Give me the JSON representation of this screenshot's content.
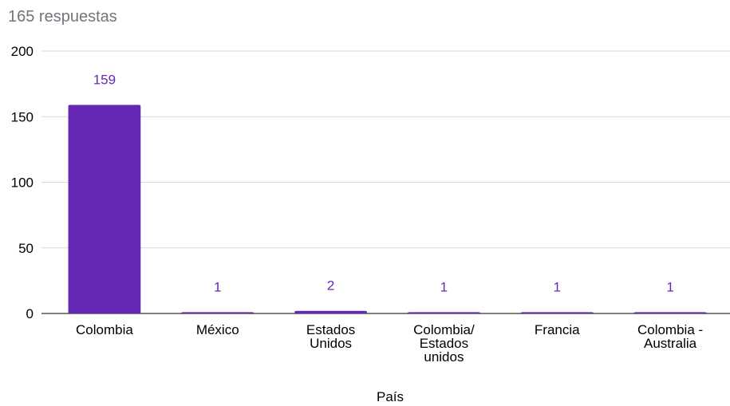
{
  "header": {
    "response_count": "165 respuestas"
  },
  "chart_data": {
    "type": "bar",
    "categories": [
      [
        "Colombia"
      ],
      [
        "México"
      ],
      [
        "Estados",
        "Unidos"
      ],
      [
        "Colombia/",
        "Estados",
        "unidos"
      ],
      [
        "Francia"
      ],
      [
        "Colombia -",
        "Australia"
      ]
    ],
    "values": [
      159,
      1,
      2,
      1,
      1,
      1
    ],
    "data_labels": [
      "159",
      "1",
      "2",
      "1",
      "1",
      "1"
    ],
    "xlabel": "País",
    "ylabel": "",
    "ylim": [
      0,
      200
    ],
    "yticks": [
      0,
      50,
      100,
      150,
      200
    ],
    "grid": true,
    "bar_color": "#6528b5"
  }
}
